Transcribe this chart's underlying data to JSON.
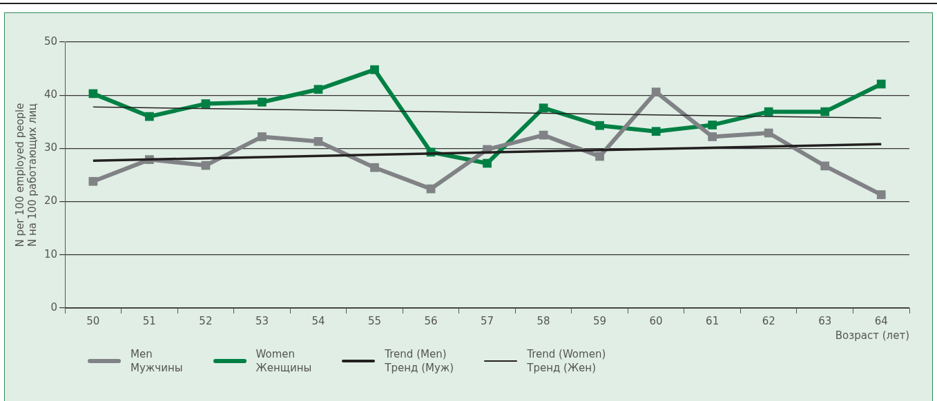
{
  "chart_data": {
    "type": "line",
    "categories": [
      "50",
      "51",
      "52",
      "53",
      "54",
      "55",
      "56",
      "57",
      "58",
      "59",
      "60",
      "61",
      "62",
      "63",
      "64"
    ],
    "series": [
      {
        "name": "Men\nМужчины",
        "color": "#808285",
        "marker": "square",
        "values": [
          23.8,
          27.9,
          26.8,
          32.2,
          31.3,
          26.4,
          22.4,
          29.8,
          32.5,
          28.5,
          40.6,
          32.2,
          32.9,
          26.7,
          21.3
        ]
      },
      {
        "name": "Women\nЖенщины",
        "color": "#008044",
        "marker": "square",
        "values": [
          40.3,
          36.0,
          38.4,
          38.7,
          41.1,
          44.8,
          29.3,
          27.2,
          37.6,
          34.3,
          33.2,
          34.4,
          36.9,
          36.9,
          42.1
        ]
      },
      {
        "name": "Trend (Men)\nТренд (Муж)",
        "color": "#231f20",
        "type": "line",
        "marker": "none",
        "x": [
          "50",
          "64"
        ],
        "values": [
          27.7,
          30.8
        ]
      },
      {
        "name": "Trend (Women)\nТренд (Жен)",
        "color": "#231f20",
        "type": "line",
        "marker": "none",
        "x": [
          "50",
          "64"
        ],
        "values": [
          37.8,
          35.7
        ]
      }
    ],
    "xlabel": "Возраст (лет)",
    "ylabel": "N per 100 employed people\nN на 100 работающих лиц",
    "ylim": [
      0,
      50
    ],
    "yticks": [
      0,
      10,
      20,
      30,
      40,
      50
    ],
    "grid": "y",
    "legend": "bottom left",
    "line_style": "solid"
  }
}
